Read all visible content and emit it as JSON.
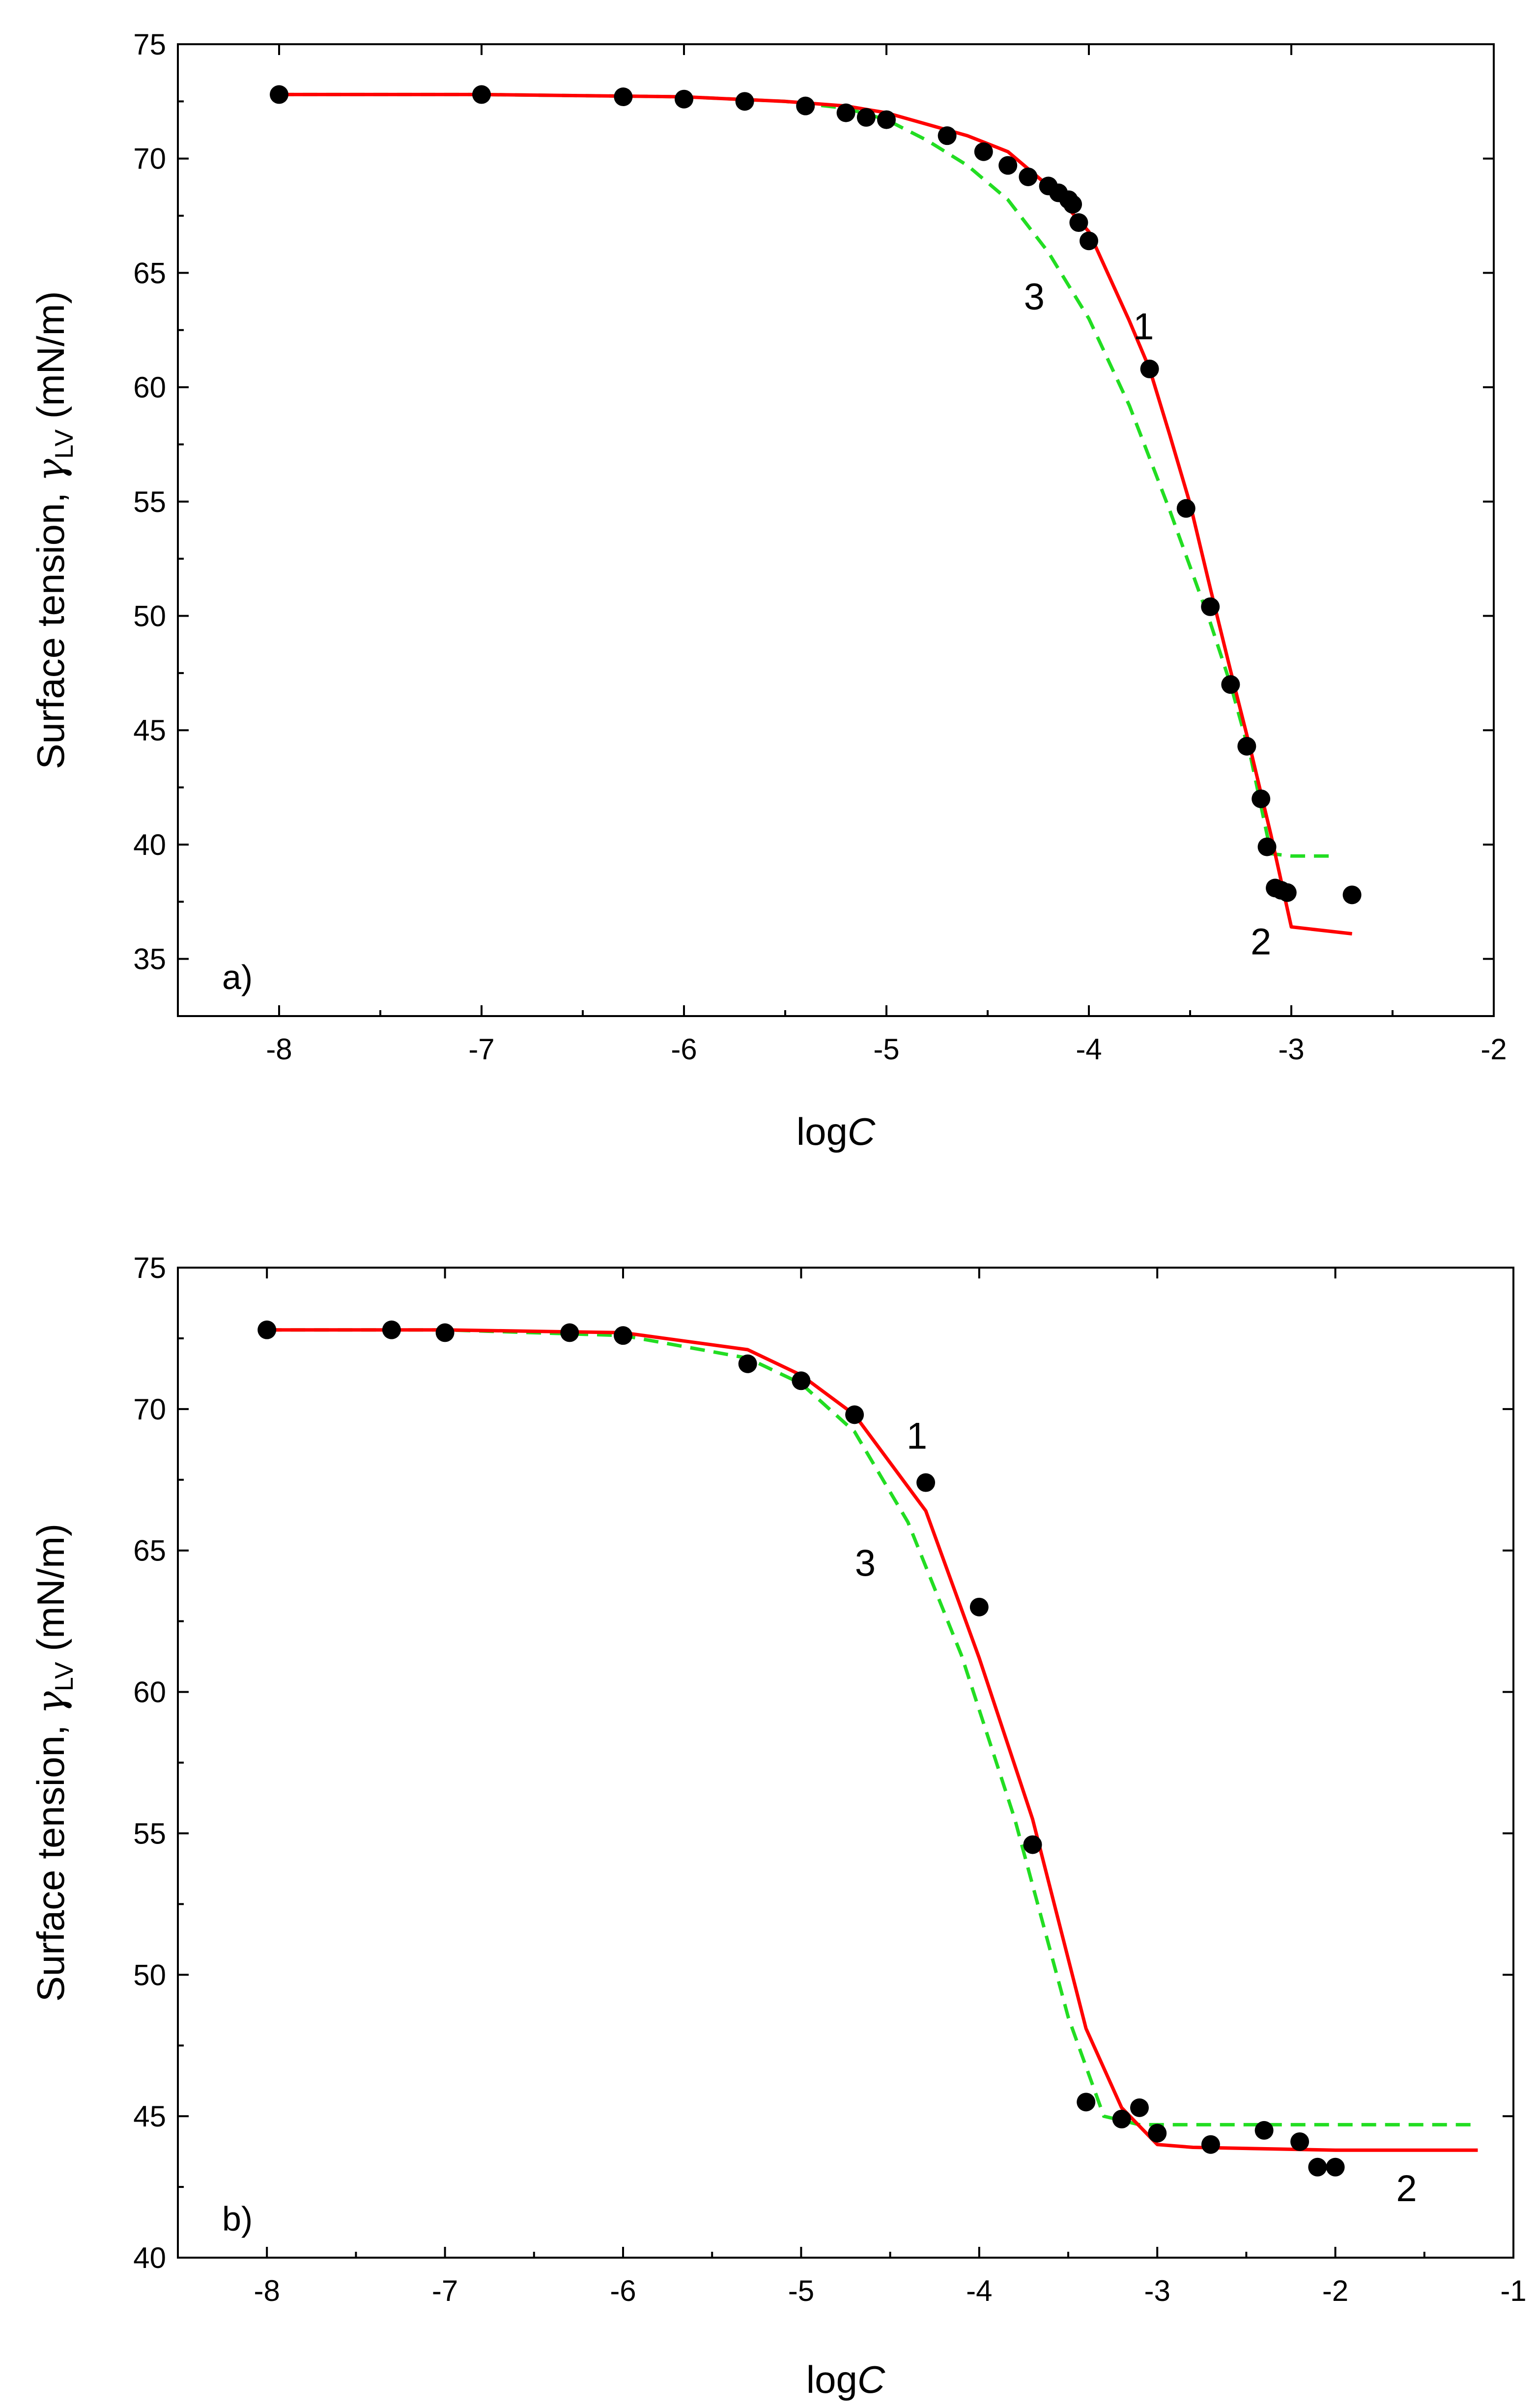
{
  "charts": [
    {
      "type": "scatter",
      "panel_label": "a)",
      "xlabel_text": "log",
      "xlabel_var": "C",
      "ylabel_text": "Surface tension, ",
      "ylabel_symbol": "γ",
      "ylabel_sub": "LV",
      "ylabel_unit": " (mN/m)",
      "xlim": [
        -8.5,
        -2
      ],
      "ylim": [
        32.5,
        75
      ],
      "xticks": [
        -8,
        -7,
        -6,
        -5,
        -4,
        -3,
        -2
      ],
      "xtick_labels": [
        "-8",
        "-7",
        "-6",
        "-5",
        "-4",
        "-3",
        "-2"
      ],
      "yticks": [
        35,
        40,
        45,
        50,
        55,
        60,
        65,
        70,
        75
      ],
      "ytick_labels": [
        "35",
        "40",
        "45",
        "50",
        "55",
        "60",
        "65",
        "70",
        "75"
      ],
      "experimental": {
        "x": [
          -8,
          -7,
          -6.3,
          -6,
          -5.7,
          -5.4,
          -5.2,
          -5.1,
          -5.0,
          -4.7,
          -4.52,
          -4.4,
          -4.3,
          -4.2,
          -4.15,
          -4.1,
          -4.08,
          -4.05,
          -4.0,
          -3.7,
          -3.52,
          -3.4,
          -3.3,
          -3.22,
          -3.15,
          -3.12,
          -3.08,
          -3.05,
          -3.02,
          -2.7
        ],
        "y": [
          72.8,
          72.8,
          72.7,
          72.6,
          72.5,
          72.3,
          72.0,
          71.8,
          71.7,
          71.0,
          70.3,
          69.7,
          69.2,
          68.8,
          68.5,
          68.2,
          68.0,
          67.2,
          66.4,
          60.8,
          54.7,
          50.4,
          47.0,
          44.3,
          42.0,
          39.9,
          38.1,
          38.0,
          37.9,
          37.8
        ]
      },
      "model1": {
        "x": [
          -8,
          -7,
          -6,
          -5.5,
          -5.2,
          -5.0,
          -4.8,
          -4.6,
          -4.4,
          -4.2,
          -4.0,
          -3.8,
          -3.7,
          -3.6,
          -3.5,
          -3.4,
          -3.3,
          -3.2,
          -3.1,
          -3.0,
          -2.7
        ],
        "y": [
          72.8,
          72.8,
          72.7,
          72.5,
          72.3,
          72.0,
          71.5,
          71.0,
          70.3,
          68.8,
          66.8,
          62.9,
          60.8,
          57.9,
          54.9,
          51.2,
          47.6,
          44.1,
          40.4,
          36.4,
          36.1
        ]
      },
      "model3": {
        "x": [
          -8,
          -7,
          -6,
          -5.5,
          -5.2,
          -5.0,
          -4.8,
          -4.6,
          -4.4,
          -4.2,
          -4.0,
          -3.8,
          -3.6,
          -3.4,
          -3.3,
          -3.2,
          -3.1,
          -3.0,
          -2.8
        ],
        "y": [
          72.8,
          72.8,
          72.7,
          72.5,
          72.2,
          71.7,
          70.8,
          69.7,
          68.2,
          65.9,
          63.0,
          59.2,
          54.6,
          49.7,
          47.0,
          43.8,
          39.6,
          39.5,
          39.5
        ]
      },
      "curve_labels": [
        {
          "text": "1",
          "x": -3.73,
          "y": 62.1
        },
        {
          "text": "2",
          "x": -3.15,
          "y": 35.2
        },
        {
          "text": "3",
          "x": -4.27,
          "y": 63.4
        }
      ]
    },
    {
      "type": "scatter",
      "panel_label": "b)",
      "xlabel_text": "log",
      "xlabel_var": "C",
      "ylabel_text": "Surface tension, ",
      "ylabel_symbol": "γ",
      "ylabel_sub": "LV",
      "ylabel_unit": " (mN/m)",
      "xlim": [
        -8.5,
        -1
      ],
      "ylim": [
        40,
        75
      ],
      "xticks": [
        -8,
        -7,
        -6,
        -5,
        -4,
        -3,
        -2,
        -1
      ],
      "xtick_labels": [
        "-8",
        "-7",
        "-6",
        "-5",
        "-4",
        "-3",
        "-2",
        "-1"
      ],
      "yticks": [
        40,
        45,
        50,
        55,
        60,
        65,
        70,
        75
      ],
      "ytick_labels": [
        "40",
        "45",
        "50",
        "55",
        "60",
        "65",
        "70",
        "75"
      ],
      "experimental": {
        "x": [
          -8,
          -7.3,
          -7,
          -6.3,
          -6,
          -5.3,
          -5,
          -4.7,
          -4.3,
          -4,
          -3.7,
          -3.4,
          -3.2,
          -3.1,
          -3.0,
          -2.7,
          -2.4,
          -2.2,
          -2.1,
          -2.0
        ],
        "y": [
          72.8,
          72.8,
          72.7,
          72.7,
          72.6,
          71.6,
          71.0,
          69.8,
          67.4,
          63.0,
          54.6,
          45.5,
          44.9,
          45.3,
          44.4,
          44.0,
          44.5,
          44.1,
          43.2,
          43.2
        ]
      },
      "model1": {
        "x": [
          -8,
          -7,
          -6,
          -5.3,
          -5.0,
          -4.7,
          -4.3,
          -4.0,
          -3.7,
          -3.4,
          -3.2,
          -3.0,
          -2.8,
          -2.0,
          -1.2
        ],
        "y": [
          72.8,
          72.8,
          72.7,
          72.1,
          71.2,
          69.8,
          66.4,
          61.2,
          55.5,
          48.1,
          45.3,
          44.0,
          43.9,
          43.8,
          43.8
        ]
      },
      "model3": {
        "x": [
          -8,
          -7,
          -6,
          -5.3,
          -5.0,
          -4.7,
          -4.4,
          -4.1,
          -3.8,
          -3.5,
          -3.3,
          -3.1,
          -2.9,
          -2.0,
          -1.2
        ],
        "y": [
          72.8,
          72.8,
          72.6,
          71.8,
          70.9,
          69.2,
          66.0,
          61.3,
          55.5,
          48.5,
          45.0,
          44.7,
          44.7,
          44.7,
          44.7
        ]
      },
      "curve_labels": [
        {
          "text": "1",
          "x": -4.35,
          "y": 68.6
        },
        {
          "text": "2",
          "x": -1.6,
          "y": 42.0
        },
        {
          "text": "3",
          "x": -4.64,
          "y": 64.1
        }
      ]
    }
  ],
  "colors": {
    "model1": "#ff0000",
    "model3": "#22dd22",
    "points": "#000000",
    "axes": "#000000"
  }
}
